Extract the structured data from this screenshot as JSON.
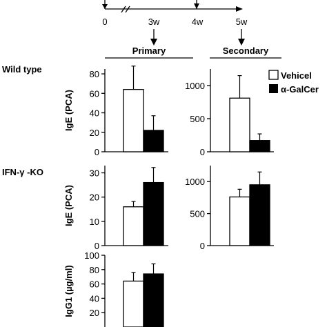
{
  "timeline": {
    "ticks": [
      "0",
      "3w",
      "4w",
      "5w"
    ]
  },
  "headers": {
    "primary": "Primary",
    "secondary": "Secondary"
  },
  "rows": {
    "wild_type": "Wild type",
    "ifn_ko": "IFN-γ -KO"
  },
  "legend": {
    "vehicle": "Vehicel",
    "galcer": "α-GalCer"
  },
  "colors": {
    "vehicle": "#ffffff",
    "galcer": "#000000",
    "axis": "#000000"
  },
  "chart_data": [
    {
      "type": "bar",
      "panel": "wild-type-primary",
      "categories": [
        "Vehicel",
        "α-GalCer"
      ],
      "values": [
        64,
        22
      ],
      "errors": [
        24,
        15
      ],
      "ylabel": "IgE (PCA)",
      "ylim": [
        0,
        85
      ],
      "yticks": [
        0,
        20,
        40,
        60,
        80
      ]
    },
    {
      "type": "bar",
      "panel": "wild-type-secondary",
      "categories": [
        "Vehicel",
        "α-GalCer"
      ],
      "values": [
        810,
        170
      ],
      "errors": [
        340,
        100
      ],
      "ylabel": "",
      "ylim": [
        0,
        1250
      ],
      "yticks": [
        0,
        500,
        1000
      ]
    },
    {
      "type": "bar",
      "panel": "ifn-ko-primary",
      "categories": [
        "Vehicel",
        "α-GalCer"
      ],
      "values": [
        16,
        26
      ],
      "errors": [
        2.2,
        6.2
      ],
      "ylabel": "IgE (PCA)",
      "ylim": [
        0,
        33
      ],
      "yticks": [
        0,
        10,
        20,
        30
      ]
    },
    {
      "type": "bar",
      "panel": "ifn-ko-secondary",
      "categories": [
        "Vehicel",
        "α-GalCer"
      ],
      "values": [
        760,
        950
      ],
      "errors": [
        120,
        200
      ],
      "ylabel": "",
      "ylim": [
        0,
        1250
      ],
      "yticks": [
        0,
        500,
        1000
      ]
    },
    {
      "type": "bar",
      "panel": "igg1-primary",
      "categories": [
        "Vehicel",
        "α-GalCer"
      ],
      "values": [
        64,
        74
      ],
      "errors": [
        12,
        14
      ],
      "ylabel": "IgG1 (µg/ml)",
      "ylim": [
        0,
        100
      ],
      "yticks": [
        20,
        40,
        60,
        80,
        100
      ]
    }
  ]
}
